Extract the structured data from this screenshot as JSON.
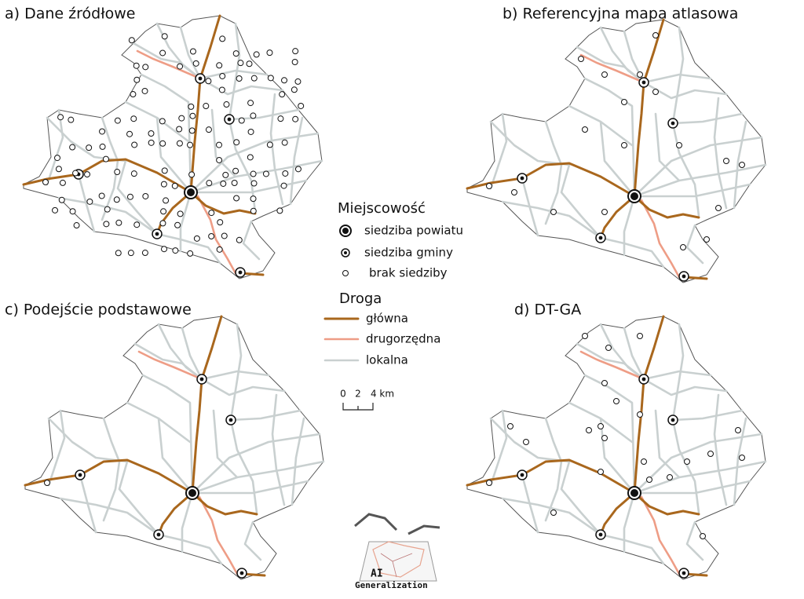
{
  "panels": [
    "a) Dane źródłowe",
    "b) Referencyjna mapa atlasowa",
    "c) Podejście podstawowe",
    "d) DT-GA"
  ],
  "legend": {
    "settlement_title": "Miejscowość",
    "settlements": [
      "siedziba powiatu",
      "siedziba gminy",
      "brak siedziby"
    ],
    "road_title": "Droga",
    "roads": [
      "główna",
      "drugorzędna",
      "lokalna"
    ]
  },
  "scale_bar": [
    "0",
    "2",
    "4 km"
  ],
  "logo": {
    "line1": "AI",
    "line2": "Generalization"
  }
}
